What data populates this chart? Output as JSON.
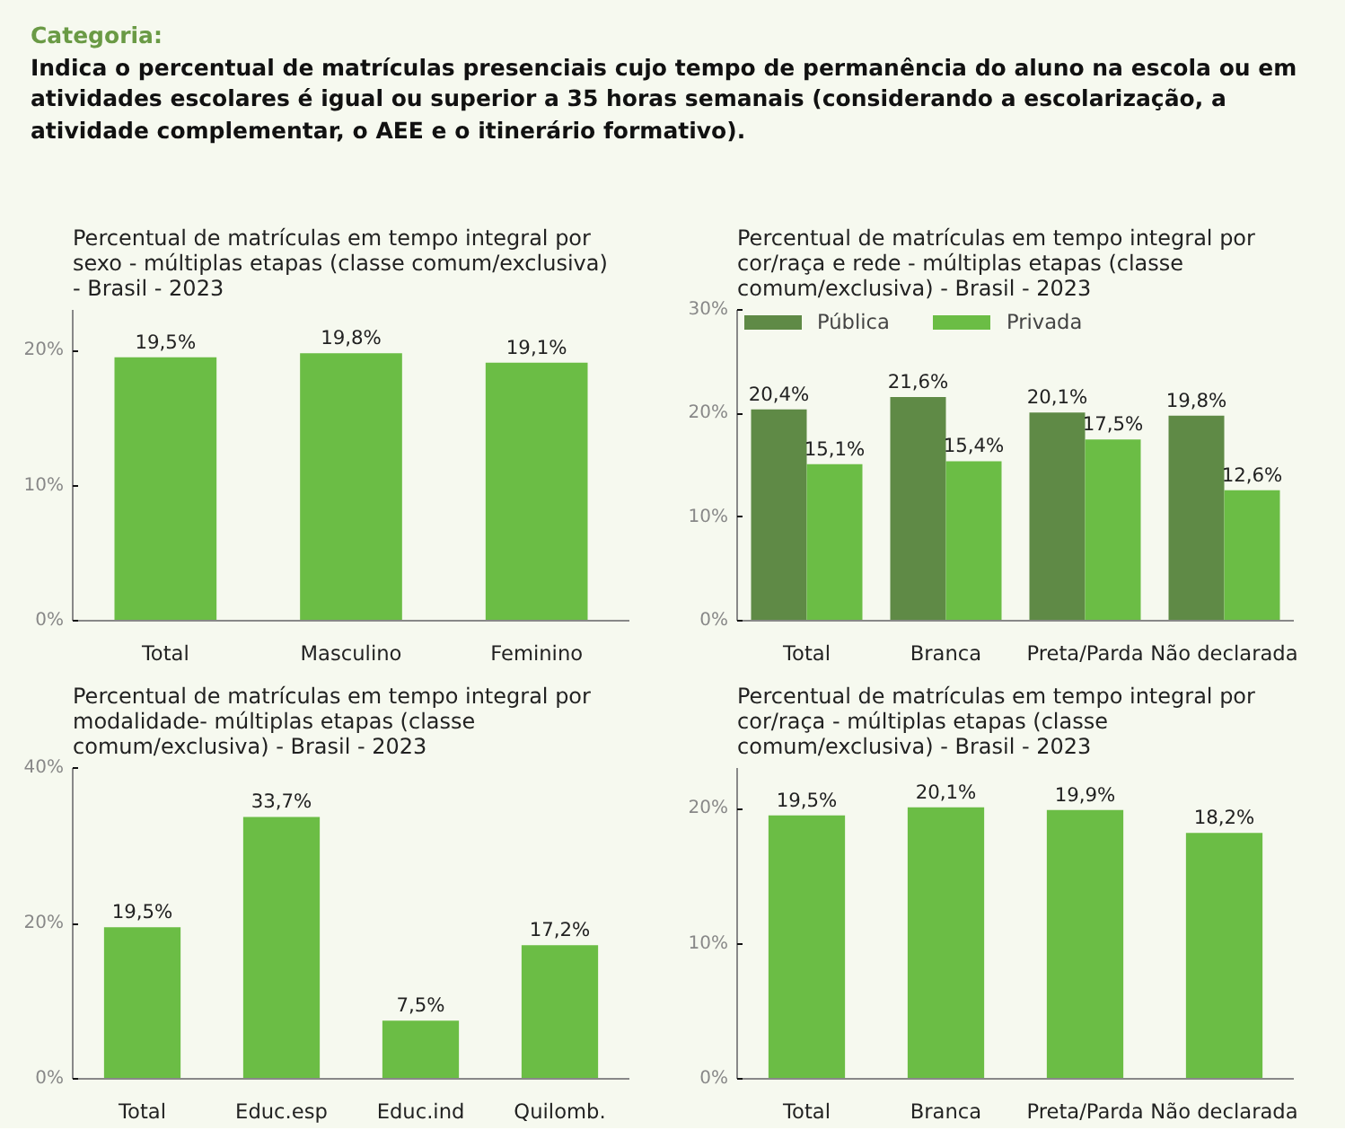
{
  "chart_data": [
    {
      "type": "other",
      "title": "Categoria:",
      "subtitle": "Indica o percentual de matrículas presenciais cujo tempo de permanência do aluno na escola ou em atividades escolares é igual ou superior a 35 horas semanais (considerando a escolarização, a atividade complementar, o AEE e o itinerário formativo)."
    },
    {
      "type": "bar",
      "title": "Percentual de matrículas em tempo integral por sexo - múltiplas etapas (classe comum/exclusiva) - Brasil - 2023",
      "categories": [
        "Total",
        "Masculino",
        "Feminino"
      ],
      "series": [
        {
          "color": "#6bbd45",
          "values": [
            19.5,
            19.8,
            19.1
          ],
          "value_labels": [
            "19,5%",
            "19,8%",
            "19,1%"
          ]
        }
      ],
      "ylim": [
        0,
        23
      ],
      "yticks": [
        {
          "value": 0,
          "label": "0%"
        },
        {
          "value": 10,
          "label": "10%"
        },
        {
          "value": 20,
          "label": "20%"
        }
      ],
      "grid": false,
      "legend": false
    },
    {
      "type": "bar",
      "title": "Percentual de matrículas em tempo integral por cor/raça e rede - múltiplas etapas (classe comum/exclusiva) - Brasil - 2023",
      "categories": [
        "Total",
        "Branca",
        "Preta/Parda",
        "Não declarada"
      ],
      "series": [
        {
          "name": "Pública",
          "color": "#5f8a46",
          "values": [
            20.4,
            21.6,
            20.1,
            19.8
          ],
          "value_labels": [
            "20,4%",
            "21,6%",
            "20,1%",
            "19,8%"
          ]
        },
        {
          "name": "Privada",
          "color": "#6bbd45",
          "values": [
            15.1,
            15.4,
            17.5,
            12.6
          ],
          "value_labels": [
            "15,1%",
            "15,4%",
            "17,5%",
            "12,6%"
          ]
        }
      ],
      "ylim": [
        0,
        30
      ],
      "yticks": [
        {
          "value": 0,
          "label": "0%"
        },
        {
          "value": 10,
          "label": "10%"
        },
        {
          "value": 20,
          "label": "20%"
        },
        {
          "value": 30,
          "label": "30%"
        }
      ],
      "grid": false,
      "legend": "top left"
    },
    {
      "type": "bar",
      "title": "Percentual de matrículas em tempo integral por modalidade- múltiplas etapas (classe comum/exclusiva) - Brasil - 2023",
      "categories": [
        "Total",
        "Educ.esp",
        "Educ.ind",
        "Quilomb."
      ],
      "series": [
        {
          "color": "#6bbd45",
          "values": [
            19.5,
            33.7,
            7.5,
            17.2
          ],
          "value_labels": [
            "19,5%",
            "33,7%",
            "7,5%",
            "17,2%"
          ]
        }
      ],
      "ylim": [
        0,
        40
      ],
      "yticks": [
        {
          "value": 0,
          "label": "0%"
        },
        {
          "value": 20,
          "label": "20%"
        },
        {
          "value": 40,
          "label": "40%"
        }
      ],
      "grid": false,
      "legend": false
    },
    {
      "type": "bar",
      "title": "Percentual de matrículas em tempo integral por cor/raça - múltiplas etapas (classe comum/exclusiva) - Brasil - 2023",
      "categories": [
        "Total",
        "Branca",
        "Preta/Parda",
        "Não declarada"
      ],
      "series": [
        {
          "color": "#6bbd45",
          "values": [
            19.5,
            20.1,
            19.9,
            18.2
          ],
          "value_labels": [
            "19,5%",
            "20,1%",
            "19,9%",
            "18,2%"
          ]
        }
      ],
      "ylim": [
        0,
        23
      ],
      "yticks": [
        {
          "value": 0,
          "label": "0%"
        },
        {
          "value": 10,
          "label": "10%"
        },
        {
          "value": 20,
          "label": "20%"
        }
      ],
      "grid": false,
      "legend": false
    }
  ]
}
